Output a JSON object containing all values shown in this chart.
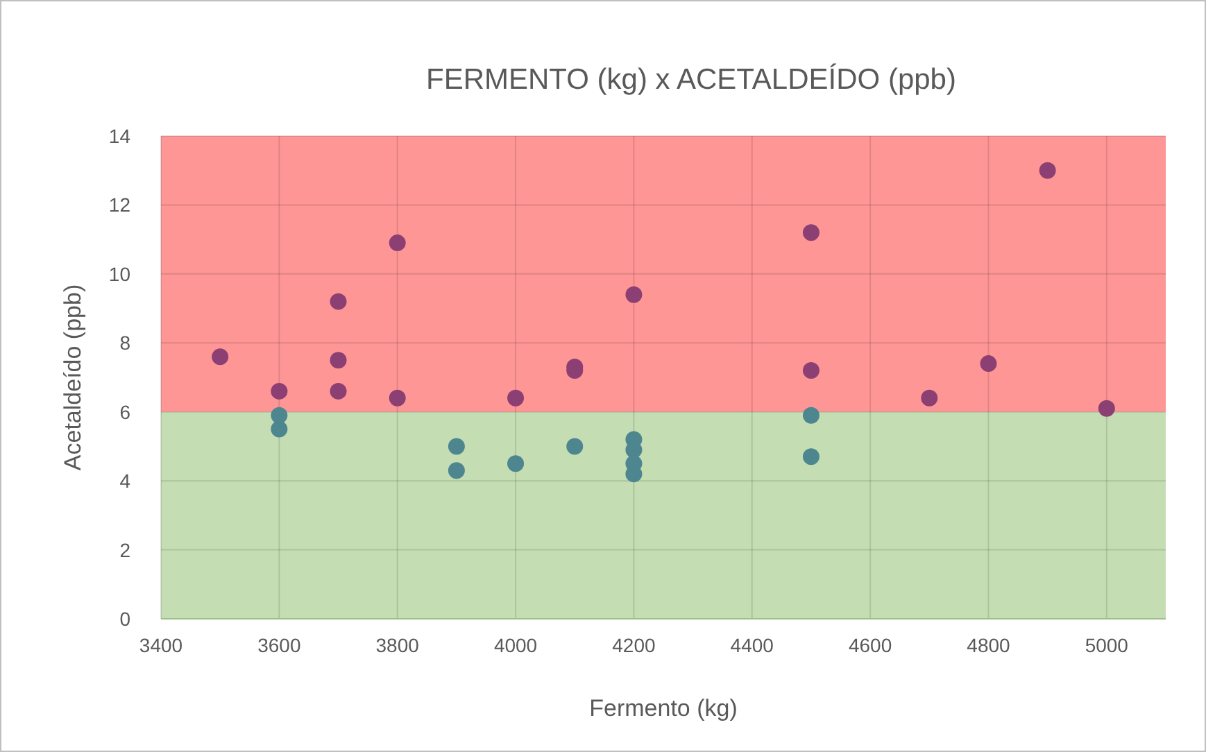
{
  "chart_data": {
    "type": "scatter",
    "title": "FERMENTO (kg) x ACETALDEÍDO (ppb)",
    "xlabel": "Fermento (kg)",
    "ylabel": "Acetaldeído (ppb)",
    "xlim": [
      3400,
      5100
    ],
    "xticks": [
      3400,
      3600,
      3800,
      4000,
      4200,
      4400,
      4600,
      4800,
      5000
    ],
    "ylim": [
      0,
      14
    ],
    "yticks": [
      0,
      2,
      4,
      6,
      8,
      10,
      12,
      14
    ],
    "grid": true,
    "marker": "circle",
    "bands": [
      {
        "axis": "y",
        "from": 0,
        "to": 6,
        "color": "#c5ddb3"
      },
      {
        "axis": "y",
        "from": 6,
        "to": 14,
        "color": "#ff9696"
      }
    ],
    "series": [
      {
        "color": "#8c3f72",
        "x": [
          3500,
          3600,
          3700,
          3700,
          3700,
          3800,
          3800,
          4000,
          4100,
          4100,
          4200,
          4500,
          4500,
          4700,
          4800,
          4900,
          5000
        ],
        "values": [
          7.6,
          6.6,
          9.2,
          7.5,
          6.6,
          10.9,
          6.4,
          6.4,
          7.3,
          7.2,
          9.4,
          11.2,
          7.2,
          6.4,
          7.4,
          13.0,
          6.1
        ]
      },
      {
        "color": "#4e8690",
        "x": [
          3600,
          3600,
          3900,
          3900,
          4000,
          4100,
          4200,
          4200,
          4200,
          4200,
          4500,
          4500
        ],
        "values": [
          5.9,
          5.5,
          5.0,
          4.3,
          4.5,
          5.0,
          5.2,
          4.9,
          4.5,
          4.2,
          5.9,
          4.7
        ]
      }
    ]
  }
}
